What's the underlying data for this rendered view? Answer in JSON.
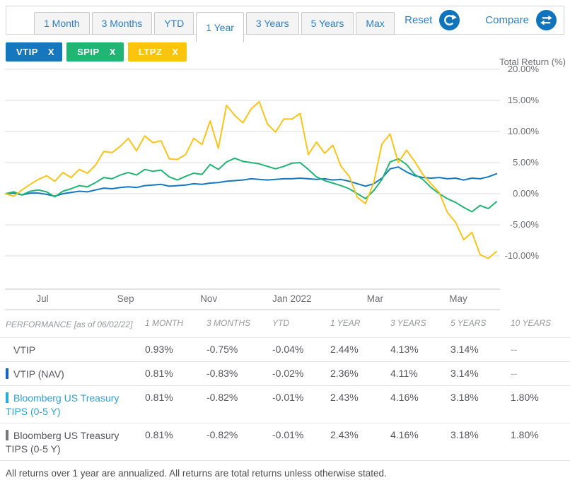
{
  "header": {
    "tabs": [
      {
        "label": "1 Month",
        "active": false
      },
      {
        "label": "3 Months",
        "active": false
      },
      {
        "label": "YTD",
        "active": false
      },
      {
        "label": "1 Year",
        "active": true
      },
      {
        "label": "3 Years",
        "active": false
      },
      {
        "label": "5 Years",
        "active": false
      },
      {
        "label": "Max",
        "active": false
      }
    ],
    "reset_label": "Reset",
    "compare_label": "Compare",
    "accent_color": "#1074BC"
  },
  "chips": [
    {
      "ticker": "VTIP",
      "color": "#1578BE",
      "close_glyph": "X"
    },
    {
      "ticker": "SPIP",
      "color": "#21B573",
      "close_glyph": "X"
    },
    {
      "ticker": "LTPZ",
      "color": "#FCC40B",
      "close_glyph": "X"
    }
  ],
  "chart_data": {
    "type": "line",
    "title": "Total Return (%)",
    "ylabel": "Total Return (%)",
    "xlabel": "",
    "grid": true,
    "legend_position": "top-left-chips",
    "ylim": [
      -10,
      20
    ],
    "y_ticks": [
      20,
      15,
      10,
      5,
      0,
      -5,
      -10
    ],
    "y_tick_labels": [
      "20.00%",
      "15.00%",
      "10.00%",
      "5.00%",
      "0.00%",
      "-5.00%",
      "-10.00%"
    ],
    "x_tick_labels": [
      "Jul",
      "Sep",
      "Nov",
      "Jan 2022",
      "Mar",
      "May"
    ],
    "x_span_months": 12,
    "series": [
      {
        "name": "VTIP",
        "color": "#1578BE",
        "values": [
          0,
          0.1,
          -0.2,
          0.1,
          0.1,
          -0.1,
          -0.4,
          0,
          0.2,
          0.4,
          0.3,
          0.6,
          0.9,
          0.8,
          1,
          1.1,
          1,
          1.3,
          1.4,
          1.5,
          1.2,
          1.3,
          1.4,
          1.6,
          1.5,
          1.7,
          1.8,
          2,
          2.1,
          2.2,
          2.4,
          2.3,
          2.2,
          2.3,
          2.4,
          2.4,
          2.5,
          2.4,
          2.3,
          2.4,
          2.2,
          2.3,
          2,
          1.6,
          1.2,
          1.6,
          2.5,
          4,
          4.3,
          3.5,
          2.9,
          2.6,
          2.5,
          2.6,
          2.4,
          2.5,
          2.2,
          2.5,
          2.4,
          2.7,
          3.2
        ]
      },
      {
        "name": "SPIP",
        "color": "#21B573",
        "values": [
          0,
          0.3,
          -0.2,
          0.4,
          0.6,
          0.3,
          -0.5,
          0.4,
          0.8,
          1.3,
          1.1,
          1.8,
          2.6,
          2.4,
          3,
          3.4,
          3,
          3.9,
          3.6,
          3.8,
          2.7,
          2.2,
          2.8,
          3.3,
          3.1,
          4.7,
          3.9,
          5.1,
          5.7,
          5.2,
          5,
          4.8,
          4.4,
          4,
          4.4,
          4.9,
          5,
          3.9,
          2.7,
          2.1,
          1.7,
          1.3,
          0.8,
          0,
          -0.8,
          0.5,
          2.3,
          5.1,
          5.6,
          4.7,
          3.1,
          2.3,
          1,
          0,
          -0.8,
          -1.4,
          -2.2,
          -2.9,
          -1.9,
          -2.4,
          -1.3
        ]
      },
      {
        "name": "LTPZ",
        "color": "#FCC419",
        "values": [
          0,
          -0.4,
          0.6,
          1.5,
          2.3,
          2.9,
          2,
          3.4,
          2.6,
          3.9,
          3.3,
          4.6,
          6.8,
          6.6,
          7.6,
          8.9,
          6.9,
          9.3,
          8.2,
          8.5,
          5.6,
          5.5,
          6.3,
          8.9,
          7.9,
          11.7,
          7.3,
          14.2,
          12.6,
          11.4,
          13.6,
          14.8,
          11.2,
          9.9,
          12,
          12,
          12.9,
          6.3,
          8.3,
          6.5,
          7.8,
          4.4,
          2.8,
          -0.6,
          -1.6,
          1.8,
          8,
          9.6,
          5,
          7,
          5.2,
          3.1,
          1.6,
          0.2,
          -3,
          -4.6,
          -7.4,
          -6.2,
          -9.8,
          -10.4,
          -9.3
        ]
      }
    ]
  },
  "table": {
    "title": "PERFORMANCE",
    "as_of": "[as of 06/02/22]",
    "columns": [
      "1 MONTH",
      "3 MONTHS",
      "YTD",
      "1 YEAR",
      "3 YEARS",
      "5 YEARS",
      "10 YEARS"
    ],
    "rows": [
      {
        "name": "VTIP",
        "marker_color": null,
        "link": false,
        "values": [
          "0.93%",
          "-0.75%",
          "-0.04%",
          "2.44%",
          "4.13%",
          "3.14%",
          "--"
        ]
      },
      {
        "name": "VTIP (NAV)",
        "marker_color": "#1565C0",
        "link": false,
        "values": [
          "0.81%",
          "-0.83%",
          "-0.02%",
          "2.36%",
          "4.11%",
          "3.14%",
          "--"
        ]
      },
      {
        "name": "Bloomberg US Treasury TIPS (0-5 Y)",
        "marker_color": "#29ABE2",
        "link": true,
        "values": [
          "0.81%",
          "-0.82%",
          "-0.01%",
          "2.43%",
          "4.16%",
          "3.18%",
          "1.80%"
        ]
      },
      {
        "name": "Bloomberg US Treasury TIPS (0-5 Y)",
        "marker_color": "#77787B",
        "link": false,
        "values": [
          "0.81%",
          "-0.82%",
          "-0.01%",
          "2.43%",
          "4.16%",
          "3.18%",
          "1.80%"
        ]
      }
    ]
  },
  "footnote": "All returns over 1 year are annualized. All returns are total returns unless otherwise stated."
}
